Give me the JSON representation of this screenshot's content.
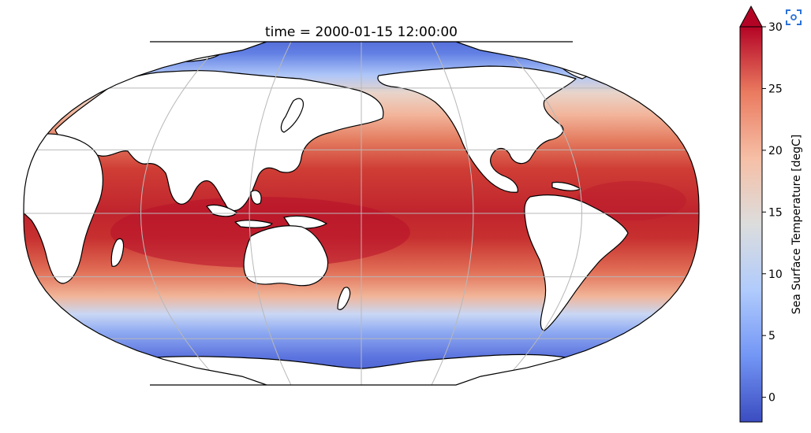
{
  "map": {
    "title": "time = 2000-01-15 12:00:00",
    "projection": "robinson",
    "central_longitude": 180,
    "variable": "Sea Surface Temperature",
    "colormap": "coolwarm",
    "gridlines": true,
    "coastlines": true
  },
  "colorbar": {
    "label": "Sea Surface Temperature [degC]",
    "min": -2,
    "max": 30,
    "extend": "max",
    "ticks": [
      {
        "value": 0,
        "label": "0"
      },
      {
        "value": 5,
        "label": "5"
      },
      {
        "value": 10,
        "label": "10"
      },
      {
        "value": 15,
        "label": "15"
      },
      {
        "value": 20,
        "label": "20"
      },
      {
        "value": 25,
        "label": "25"
      },
      {
        "value": 30,
        "label": "30"
      }
    ],
    "stops": [
      "#3b4cc0",
      "#7396f5",
      "#b0cbfc",
      "#dcdddd",
      "#f6bfa6",
      "#ea7b60",
      "#b40426"
    ]
  },
  "colors": {
    "land": "#ffffff",
    "coast": "#000000",
    "grid": "#b8b8b8"
  },
  "toolbar": {
    "fullscreen_icon": "fullscreen-scan-icon"
  }
}
